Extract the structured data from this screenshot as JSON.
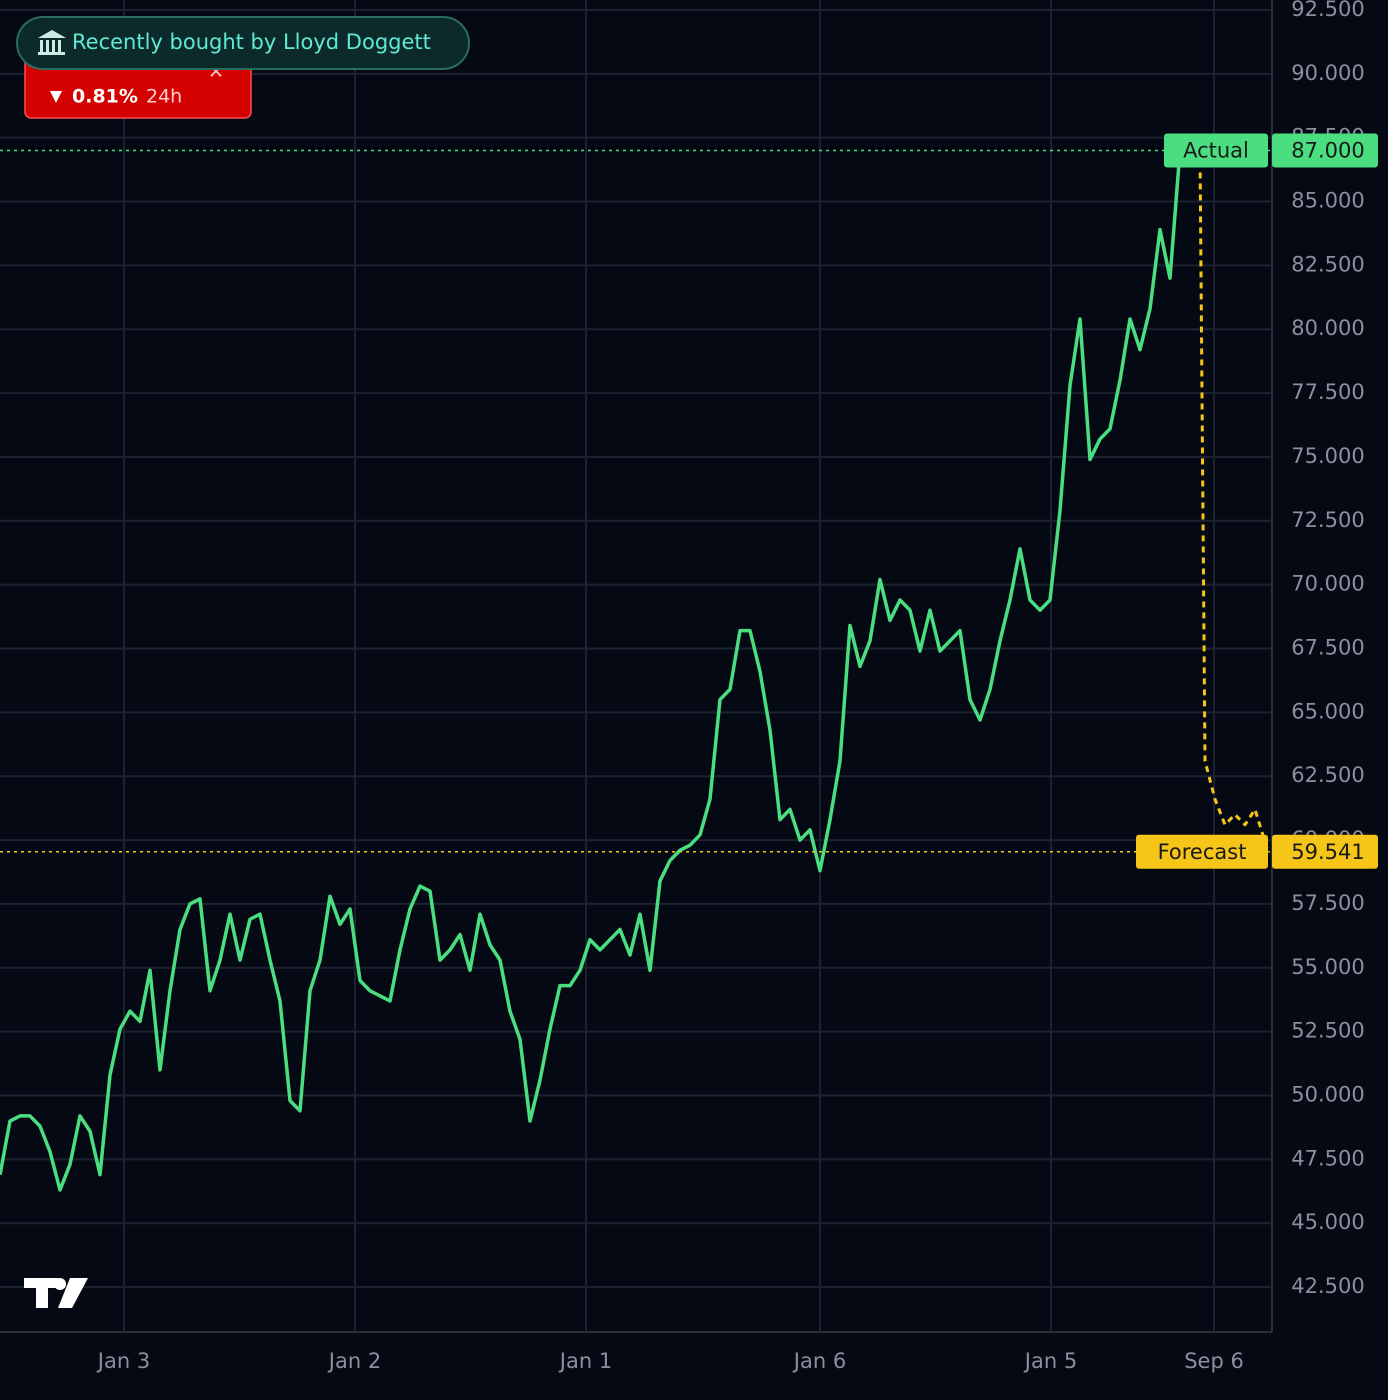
{
  "chart_data": {
    "type": "line",
    "annotations": [
      "Recently bought by Lloyd Doggett"
    ],
    "change": {
      "text": "0.81%",
      "period": "24h"
    },
    "xlim": [
      0,
      127.2
    ],
    "xticks": [
      {
        "value": 12.4,
        "label": "Jan 3"
      },
      {
        "value": 35.5,
        "label": "Jan 2"
      },
      {
        "value": 58.6,
        "label": "Jan 1"
      },
      {
        "value": 82.0,
        "label": "Jan 6"
      },
      {
        "value": 105.1,
        "label": "Jan 5"
      },
      {
        "value": 121.4,
        "label": "Sep 6"
      }
    ],
    "ylim": [
      40.74,
      92.89
    ],
    "yticks": [
      {
        "value": 42.5,
        "label": "42.500"
      },
      {
        "value": 45,
        "label": "45.000"
      },
      {
        "value": 47.5,
        "label": "47.500"
      },
      {
        "value": 50,
        "label": "50.000"
      },
      {
        "value": 52.5,
        "label": "52.500"
      },
      {
        "value": 55,
        "label": "55.000"
      },
      {
        "value": 57.5,
        "label": "57.500"
      },
      {
        "value": 60,
        "label": "60.000"
      },
      {
        "value": 62.5,
        "label": "62.500"
      },
      {
        "value": 65,
        "label": "65.000"
      },
      {
        "value": 67.5,
        "label": "67.500"
      },
      {
        "value": 70,
        "label": "70.000"
      },
      {
        "value": 72.5,
        "label": "72.500"
      },
      {
        "value": 75,
        "label": "75.000"
      },
      {
        "value": 77.5,
        "label": "77.500"
      },
      {
        "value": 80,
        "label": "80.000"
      },
      {
        "value": 82.5,
        "label": "82.500"
      },
      {
        "value": 85,
        "label": "85.000"
      },
      {
        "value": 87.5,
        "label": "87.500"
      },
      {
        "value": 90,
        "label": "90.000"
      },
      {
        "value": 92.5,
        "label": "92.500"
      }
    ],
    "grid": true,
    "series": [
      {
        "name": "Actual",
        "color": "#4ade80",
        "dashed": false,
        "last_value_label": "87.000",
        "x": [
          0,
          1,
          2,
          3,
          4,
          5,
          6,
          7,
          8,
          9,
          10,
          11,
          12,
          13,
          14,
          15,
          16,
          17,
          18,
          19,
          20,
          21,
          22,
          23,
          24,
          25,
          26,
          27,
          28,
          29,
          30,
          31,
          32,
          33,
          34,
          35,
          36,
          37,
          38,
          39,
          40,
          41,
          42,
          43,
          44,
          45,
          46,
          47,
          48,
          49,
          50,
          51,
          52,
          53,
          54,
          55,
          56,
          57,
          58,
          59,
          60,
          61,
          62,
          63,
          64,
          65,
          66,
          67,
          68,
          69,
          70,
          71,
          72,
          73,
          74,
          75,
          76,
          77,
          78,
          79,
          80,
          81,
          82,
          83,
          84,
          85,
          86,
          87,
          88,
          89,
          90,
          91,
          92,
          93,
          94,
          95,
          96,
          97,
          98,
          99,
          100,
          101,
          102,
          103,
          104,
          105,
          106,
          107,
          108,
          109,
          110,
          111,
          112,
          113,
          114,
          115,
          116,
          117,
          118
        ],
        "values": [
          46.9,
          49.0,
          49.2,
          49.2,
          48.8,
          47.8,
          46.3,
          47.3,
          49.2,
          48.6,
          46.9,
          50.8,
          52.6,
          53.3,
          52.9,
          54.9,
          51.0,
          54.1,
          56.5,
          57.5,
          57.7,
          54.1,
          55.3,
          57.1,
          55.3,
          56.9,
          57.1,
          55.3,
          53.7,
          49.8,
          49.4,
          54.1,
          55.3,
          57.8,
          56.7,
          57.3,
          54.5,
          54.1,
          53.9,
          53.7,
          55.7,
          57.3,
          58.2,
          58.0,
          55.3,
          55.7,
          56.3,
          54.9,
          57.1,
          55.9,
          55.3,
          53.3,
          52.2,
          49.0,
          50.6,
          52.6,
          54.3,
          54.3,
          54.9,
          56.1,
          55.7,
          56.1,
          56.5,
          55.5,
          57.1,
          54.9,
          58.4,
          59.2,
          59.6,
          59.8,
          60.2,
          61.6,
          65.5,
          65.9,
          68.2,
          68.2,
          66.6,
          64.3,
          60.8,
          61.2,
          60.0,
          60.4,
          58.8,
          60.8,
          63.1,
          68.4,
          66.8,
          67.8,
          70.2,
          68.6,
          69.4,
          69.0,
          67.4,
          69.0,
          67.4,
          67.8,
          68.2,
          65.5,
          64.7,
          65.9,
          67.8,
          69.4,
          71.4,
          69.4,
          69.0,
          69.4,
          72.9,
          77.8,
          80.4,
          74.9,
          75.7,
          76.1,
          78.0,
          80.4,
          79.2,
          80.8,
          83.9,
          82.0,
          87.0
        ]
      },
      {
        "name": "Forecast",
        "color": "#f5c518",
        "dashed": true,
        "last_value_label": "59.541",
        "x": [
          120,
          120.5,
          121.5,
          122.5,
          123.5,
          124.5,
          125.5,
          126.8
        ],
        "values": [
          87.0,
          63.1,
          61.6,
          60.6,
          61.0,
          60.6,
          61.2,
          59.541
        ]
      }
    ]
  }
}
